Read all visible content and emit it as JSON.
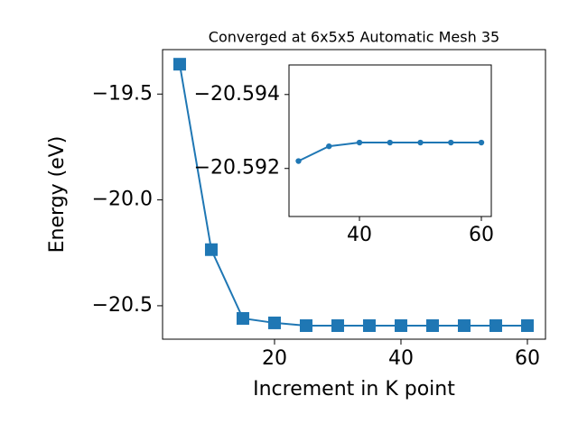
{
  "chart_data": [
    {
      "type": "line",
      "title": "Converged at 6x5x5 Automatic Mesh 35",
      "x_label": "Increment in K point",
      "y_label": "Energy (eV)",
      "x": [
        5,
        10,
        15,
        20,
        25,
        30,
        35,
        40,
        45,
        50,
        55,
        60
      ],
      "series": [
        {
          "color": "#1f77b4",
          "marker": "square",
          "values": [
            -19.359,
            -20.235,
            -20.56,
            -20.581,
            -20.594,
            -20.594,
            -20.594,
            -20.594,
            -20.594,
            -20.594,
            -20.594,
            -20.594
          ]
        }
      ],
      "xlim": [
        2.29,
        62.86
      ],
      "ylim": [
        -20.658,
        -19.29
      ],
      "xticks": [
        20,
        40,
        60
      ],
      "yticks": [
        {
          "value": -20.5,
          "label": "−20.5"
        },
        {
          "value": -20.0,
          "label": "−20.0"
        },
        {
          "value": -19.5,
          "label": "−19.5"
        }
      ]
    },
    {
      "type": "line",
      "x": [
        30,
        35,
        40,
        45,
        50,
        55,
        60
      ],
      "series": [
        {
          "color": "#1f77b4",
          "marker": "circle",
          "values": [
            -20.5922,
            -20.5926,
            -20.5927,
            -20.5927,
            -20.5927,
            -20.5927,
            -20.5927
          ]
        }
      ],
      "xlim": [
        28.44,
        61.63
      ],
      "ylim": [
        -20.5907,
        -20.5948
      ],
      "xticks": [
        40,
        60
      ],
      "yticks": [
        {
          "value": -20.592,
          "label": "−20.592"
        },
        {
          "value": -20.594,
          "label": "−20.594"
        }
      ]
    }
  ]
}
